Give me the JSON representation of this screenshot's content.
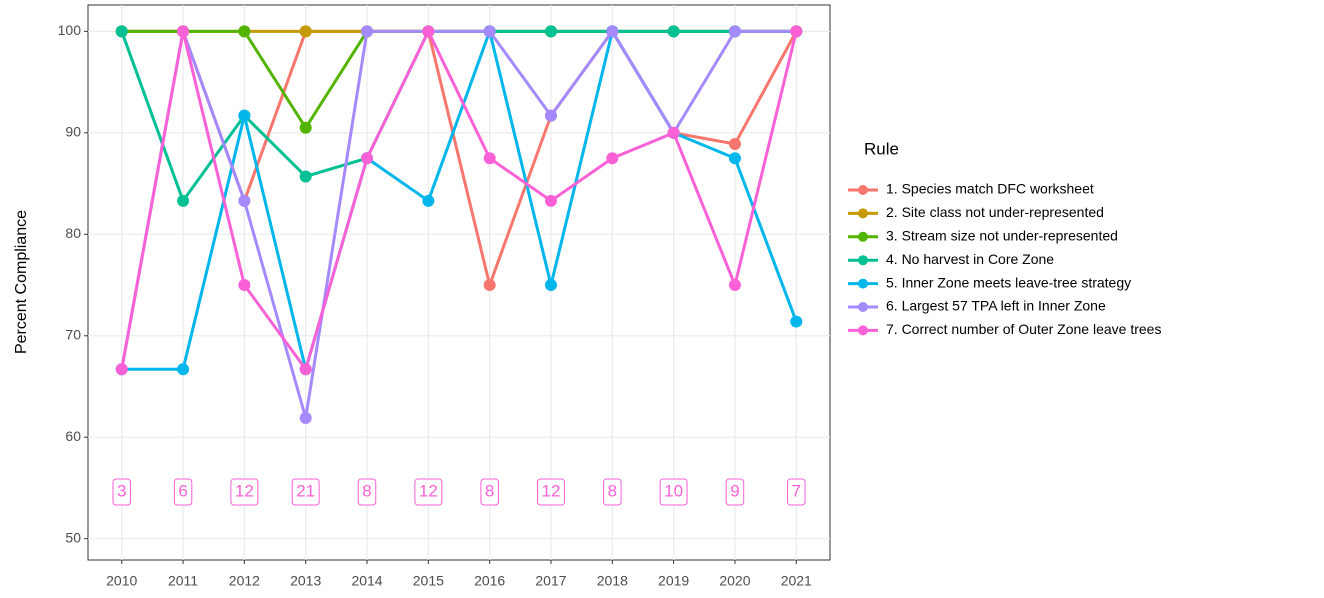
{
  "chart_data": {
    "type": "line",
    "y_label": "Percent Compliance",
    "legend_title": "Rule",
    "legend_position": "right",
    "grid": true,
    "x": [
      2010,
      2011,
      2012,
      2013,
      2014,
      2015,
      2016,
      2017,
      2018,
      2019,
      2020,
      2021
    ],
    "xlim": [
      2009.45,
      2021.55
    ],
    "xticks": [
      2010,
      2011,
      2012,
      2013,
      2014,
      2015,
      2016,
      2017,
      2018,
      2019,
      2020,
      2021
    ],
    "ylim": [
      47.9,
      102.6
    ],
    "yticks": [
      50,
      60,
      70,
      80,
      90,
      100
    ],
    "series": [
      {
        "name": "1. Species match DFC worksheet",
        "color": "#F8766D",
        "values": [
          100,
          100,
          83.3,
          100,
          100,
          100,
          75,
          91.7,
          100,
          90,
          88.9,
          100
        ]
      },
      {
        "name": "2. Site class not under-represented",
        "color": "#C49A00",
        "values": [
          100,
          100,
          100,
          100,
          100,
          100,
          100,
          100,
          100,
          100,
          100,
          100
        ]
      },
      {
        "name": "3. Stream size not under-represented",
        "color": "#53B400",
        "values": [
          100,
          100,
          100,
          90.5,
          100,
          100,
          100,
          100,
          100,
          100,
          100,
          100
        ]
      },
      {
        "name": "4. No harvest in Core Zone",
        "color": "#00C094",
        "values": [
          100,
          83.3,
          91.7,
          85.7,
          87.5,
          100,
          100,
          100,
          100,
          100,
          100,
          100
        ]
      },
      {
        "name": "5. Inner Zone meets leave-tree strategy",
        "color": "#00B6EB",
        "values": [
          66.7,
          66.7,
          91.7,
          66.7,
          87.5,
          83.3,
          100,
          75,
          100,
          90,
          87.5,
          71.4
        ]
      },
      {
        "name": "6. Largest 57 TPA left in Inner Zone",
        "color": "#A58AFF",
        "values": [
          66.7,
          100,
          83.3,
          61.9,
          100,
          100,
          100,
          91.7,
          100,
          90,
          100,
          100
        ]
      },
      {
        "name": "7. Correct number of Outer Zone leave trees",
        "color": "#FB61D7",
        "values": [
          66.7,
          100,
          75,
          66.7,
          87.5,
          100,
          87.5,
          83.3,
          87.5,
          90,
          75,
          100
        ]
      }
    ],
    "sample_sizes": [
      3,
      6,
      12,
      21,
      8,
      12,
      8,
      12,
      8,
      10,
      9,
      7
    ],
    "sample_size_color": "#FB61D7"
  }
}
